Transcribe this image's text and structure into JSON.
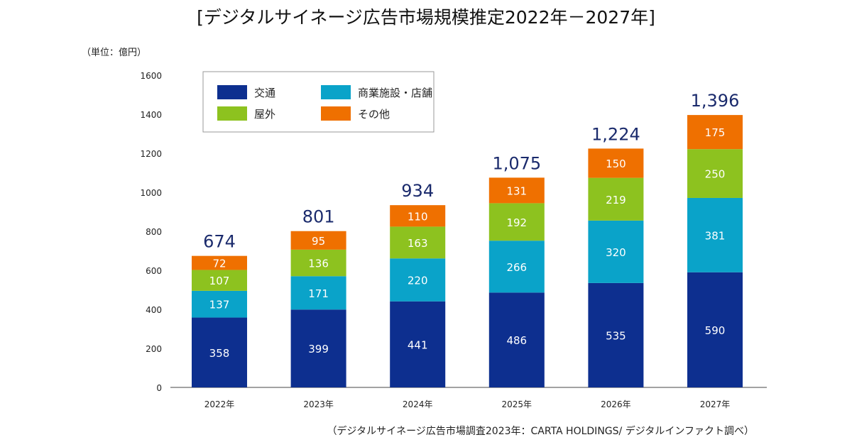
{
  "chart_data": {
    "type": "bar",
    "stacked": true,
    "title": "[デジタルサイネージ広告市場規模推定2022年－2027年]",
    "unit_label": "（単位：億円）",
    "source": "（デジタルサイネージ広告市場調査2023年：CARTA HOLDINGS/ デジタルインファクト調べ）",
    "categories": [
      "2022年",
      "2023年",
      "2024年",
      "2025年",
      "2026年",
      "2027年"
    ],
    "series": [
      {
        "name": "交通",
        "color": "#0d2f8f",
        "values": [
          358,
          399,
          441,
          486,
          535,
          590
        ]
      },
      {
        "name": "商業施設・店舗",
        "color": "#0aa3c9",
        "values": [
          137,
          171,
          220,
          266,
          320,
          381
        ]
      },
      {
        "name": "屋外",
        "color": "#8dc21f",
        "values": [
          107,
          136,
          163,
          192,
          219,
          250
        ]
      },
      {
        "name": "その他",
        "color": "#ef7000",
        "values": [
          72,
          95,
          110,
          131,
          150,
          175
        ]
      }
    ],
    "totals": [
      "674",
      "801",
      "934",
      "1,075",
      "1,224",
      "1,396"
    ],
    "ylim": [
      0,
      1600
    ],
    "yticks": [
      "0",
      "200",
      "400",
      "600",
      "800",
      "1000",
      "1200",
      "1400",
      "1600"
    ],
    "grid": false,
    "legend_placement": "top-left",
    "total_color": "#1a2a6c"
  }
}
